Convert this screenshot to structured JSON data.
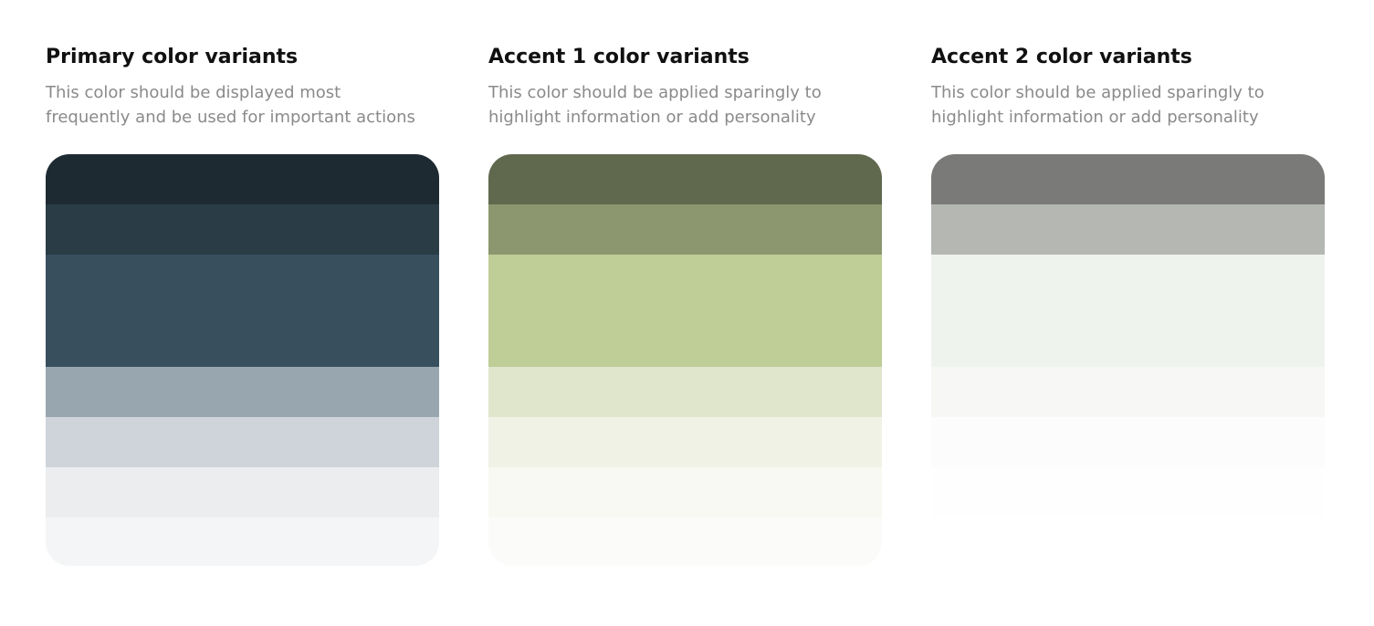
{
  "palettes": [
    {
      "title": "Primary color variants",
      "description": "This color should be displayed most\nfrequently and be used for important actions",
      "swatches": [
        "#1e2a32",
        "#2a3d47",
        "#38505e",
        "#98a6af",
        "#ced4d9",
        "#ebedef",
        "#f4f5f7"
      ]
    },
    {
      "title": "Accent 1 color variants",
      "description": "This color should be applied sparingly to\nhighlight information or add personality",
      "swatches": [
        "#60684e",
        "#8c976f",
        "#bfcd97",
        "#e0e6cb",
        "#eff2e5",
        "#f7f9f2",
        "#fbfbf9"
      ]
    },
    {
      "title": "Accent 2 color variants",
      "description": "This color should be applied sparingly to\nhighlight information or add personality",
      "swatches": [
        "#7a7b78",
        "#b5b7b3",
        "#eff3ee",
        "#f7f8f6",
        "#fcfcfc",
        "#fefefe",
        "#ffffff"
      ]
    }
  ]
}
